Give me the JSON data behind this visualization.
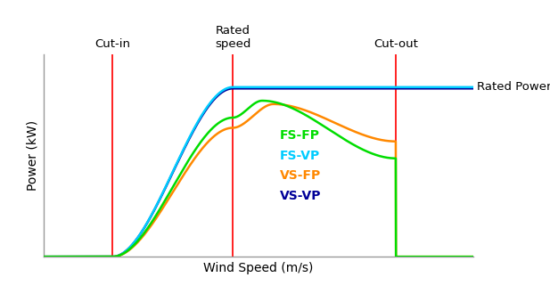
{
  "xlabel": "Wind Speed (m/s)",
  "ylabel": "Power (kW)",
  "cut_in": 0.16,
  "rated_speed": 0.44,
  "cut_out": 0.82,
  "rated_power": 0.88,
  "rated_power_label": "Rated Power",
  "cut_in_label": "Cut-in",
  "rated_speed_label": "Rated\nspeed",
  "cut_out_label": "Cut-out",
  "line_colors": {
    "FS-FP": "#00dd00",
    "FS-VP": "#00ccff",
    "VS-FP": "#ff8800",
    "VS-VP": "#000099"
  },
  "vline_color": "#ff2020",
  "background_color": "#ffffff",
  "figsize": [
    6.17,
    3.39
  ],
  "dpi": 100
}
